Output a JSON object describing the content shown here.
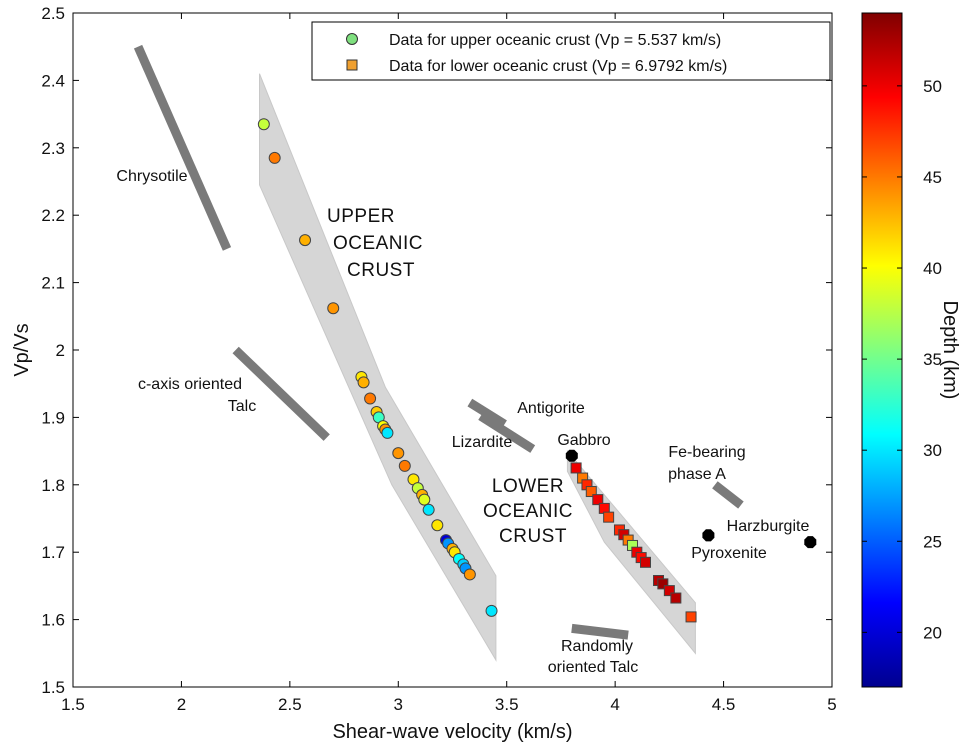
{
  "chart_data": {
    "type": "scatter",
    "xlabel": "Shear-wave velocity (km/s)",
    "ylabel": "Vp/Vs",
    "xlim": [
      1.5,
      5
    ],
    "ylim": [
      1.5,
      2.5
    ],
    "xticks": [
      "1.5",
      "2",
      "2.5",
      "3",
      "3.5",
      "4",
      "4.5",
      "5"
    ],
    "yticks": [
      "1.5",
      "1.6",
      "1.7",
      "1.8",
      "1.9",
      "2",
      "2.1",
      "2.2",
      "2.3",
      "2.4",
      "2.5"
    ],
    "legend": {
      "position": "top-right",
      "entries": [
        {
          "label": "Data for upper oceanic crust (Vp = 5.537 km/s)",
          "marker": "circle",
          "color": "#7fe07f"
        },
        {
          "label": "Data for lower oceanic crust (Vp = 6.9792 km/s)",
          "marker": "square",
          "color": "#f0a030"
        }
      ]
    },
    "colorbar": {
      "label": "Depth (km)",
      "range": [
        17,
        54
      ],
      "ticks": [
        "20",
        "25",
        "30",
        "35",
        "40",
        "45",
        "50"
      ],
      "colors": [
        "#00008f",
        "#0000ff",
        "#0080ff",
        "#00ffff",
        "#80ff80",
        "#ffff00",
        "#ff8000",
        "#ff0000",
        "#800000"
      ]
    },
    "series": [
      {
        "name": "Data for upper oceanic crust (Vp = 5.537 km/s)",
        "marker": "circle",
        "points": [
          {
            "x": 2.38,
            "y": 2.335,
            "depth": 38
          },
          {
            "x": 2.43,
            "y": 2.285,
            "depth": 45
          },
          {
            "x": 2.57,
            "y": 2.163,
            "depth": 43
          },
          {
            "x": 2.7,
            "y": 2.062,
            "depth": 44
          },
          {
            "x": 2.83,
            "y": 1.96,
            "depth": 41
          },
          {
            "x": 2.84,
            "y": 1.952,
            "depth": 43
          },
          {
            "x": 2.87,
            "y": 1.928,
            "depth": 45
          },
          {
            "x": 2.9,
            "y": 1.908,
            "depth": 42
          },
          {
            "x": 2.91,
            "y": 1.9,
            "depth": 33
          },
          {
            "x": 2.93,
            "y": 1.887,
            "depth": 40
          },
          {
            "x": 2.94,
            "y": 1.882,
            "depth": 44
          },
          {
            "x": 2.95,
            "y": 1.877,
            "depth": 30
          },
          {
            "x": 3.0,
            "y": 1.847,
            "depth": 44
          },
          {
            "x": 3.03,
            "y": 1.828,
            "depth": 45
          },
          {
            "x": 3.07,
            "y": 1.808,
            "depth": 41
          },
          {
            "x": 3.09,
            "y": 1.795,
            "depth": 38
          },
          {
            "x": 3.11,
            "y": 1.785,
            "depth": 43
          },
          {
            "x": 3.12,
            "y": 1.778,
            "depth": 39
          },
          {
            "x": 3.14,
            "y": 1.763,
            "depth": 30
          },
          {
            "x": 3.18,
            "y": 1.74,
            "depth": 41
          },
          {
            "x": 3.22,
            "y": 1.718,
            "depth": 20
          },
          {
            "x": 3.23,
            "y": 1.713,
            "depth": 27
          },
          {
            "x": 3.25,
            "y": 1.705,
            "depth": 43
          },
          {
            "x": 3.26,
            "y": 1.7,
            "depth": 41
          },
          {
            "x": 3.28,
            "y": 1.69,
            "depth": 31
          },
          {
            "x": 3.3,
            "y": 1.682,
            "depth": 29
          },
          {
            "x": 3.31,
            "y": 1.676,
            "depth": 27
          },
          {
            "x": 3.33,
            "y": 1.667,
            "depth": 44
          },
          {
            "x": 3.43,
            "y": 1.613,
            "depth": 30
          }
        ]
      },
      {
        "name": "Data for lower oceanic crust (Vp = 6.9792 km/s)",
        "marker": "square",
        "points": [
          {
            "x": 3.82,
            "y": 1.825,
            "depth": 50
          },
          {
            "x": 3.85,
            "y": 1.81,
            "depth": 45
          },
          {
            "x": 3.87,
            "y": 1.8,
            "depth": 48
          },
          {
            "x": 3.89,
            "y": 1.79,
            "depth": 46
          },
          {
            "x": 3.92,
            "y": 1.778,
            "depth": 50
          },
          {
            "x": 3.95,
            "y": 1.765,
            "depth": 49
          },
          {
            "x": 3.97,
            "y": 1.752,
            "depth": 47
          },
          {
            "x": 4.02,
            "y": 1.733,
            "depth": 48
          },
          {
            "x": 4.04,
            "y": 1.726,
            "depth": 51
          },
          {
            "x": 4.06,
            "y": 1.718,
            "depth": 45
          },
          {
            "x": 4.08,
            "y": 1.71,
            "depth": 37
          },
          {
            "x": 4.1,
            "y": 1.7,
            "depth": 50
          },
          {
            "x": 4.12,
            "y": 1.692,
            "depth": 49
          },
          {
            "x": 4.14,
            "y": 1.685,
            "depth": 51
          },
          {
            "x": 4.2,
            "y": 1.658,
            "depth": 52
          },
          {
            "x": 4.22,
            "y": 1.653,
            "depth": 53
          },
          {
            "x": 4.25,
            "y": 1.643,
            "depth": 51
          },
          {
            "x": 4.28,
            "y": 1.632,
            "depth": 52
          },
          {
            "x": 4.35,
            "y": 1.604,
            "depth": 47
          }
        ]
      }
    ],
    "minerals": [
      {
        "name": "Gabbro",
        "x": 3.8,
        "y": 1.843
      },
      {
        "name": "Pyroxenite",
        "x": 4.43,
        "y": 1.725
      },
      {
        "name": "Harzburgite",
        "x": 4.9,
        "y": 1.715
      }
    ],
    "bands": [
      {
        "name": "Chrysotile",
        "from": [
          1.8,
          2.45
        ],
        "to": [
          2.21,
          2.15
        ]
      },
      {
        "name": "c-axis oriented Talc",
        "from": [
          2.25,
          2.0
        ],
        "to": [
          2.67,
          1.87
        ]
      },
      {
        "name": "Antigorite",
        "from": [
          3.33,
          1.922
        ],
        "to": [
          3.49,
          1.89
        ]
      },
      {
        "name": "Lizardite",
        "from": [
          3.38,
          1.902
        ],
        "to": [
          3.62,
          1.853
        ]
      },
      {
        "name": "Fe-bearing phase A",
        "from": [
          4.46,
          1.8
        ],
        "to": [
          4.58,
          1.77
        ]
      },
      {
        "name": "Randomly oriented Talc",
        "from": [
          3.8,
          1.587
        ],
        "to": [
          4.06,
          1.577
        ]
      }
    ],
    "regions": [
      {
        "name": "UPPER OCEANIC CRUST",
        "lines": [
          "UPPER",
          "OCEANIC",
          "CRUST"
        ],
        "polygon": [
          [
            2.36,
            2.41
          ],
          [
            2.94,
            1.945
          ],
          [
            3.45,
            1.665
          ],
          [
            3.45,
            1.54
          ],
          [
            2.97,
            1.8
          ],
          [
            2.36,
            2.245
          ]
        ]
      },
      {
        "name": "LOWER OCEANIC CRUST",
        "lines": [
          "LOWER",
          "OCEANIC",
          "CRUST"
        ],
        "polygon": [
          [
            3.78,
            1.85
          ],
          [
            4.37,
            1.625
          ],
          [
            4.37,
            1.55
          ],
          [
            3.95,
            1.715
          ],
          [
            3.78,
            1.82
          ]
        ]
      }
    ]
  }
}
